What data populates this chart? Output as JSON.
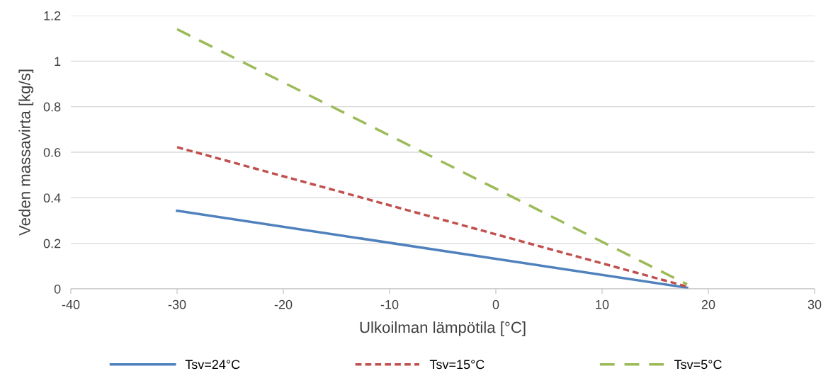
{
  "chart_data": {
    "type": "line",
    "xlabel": "Ulkoilman lämpötila [°C]",
    "ylabel": "Veden massavirta [kg/s]",
    "series": [
      {
        "name": "Tsv=24°C",
        "color": "#4f81bd",
        "line_style": "solid",
        "values": [
          0.343,
          0.005
        ]
      },
      {
        "name": "Tsv=15°C",
        "color": "#c0504d",
        "line_style": "dotted",
        "values": [
          0.622,
          0.01
        ]
      },
      {
        "name": "Tsv=5°C",
        "color": "#9bbb59",
        "line_style": "dashed",
        "values": [
          1.14,
          0.02
        ]
      }
    ],
    "x": [
      -30,
      18
    ],
    "xlim": [
      -40,
      30
    ],
    "xticks": [
      -40,
      -30,
      -20,
      -10,
      0,
      10,
      20,
      30
    ],
    "ylim": [
      0,
      1.2
    ],
    "yticks": [
      0,
      {
        "value": 0.2,
        "label": "0.2"
      },
      {
        "value": 0.4,
        "label": "0.4"
      },
      {
        "value": 0.6,
        "label": "0.6"
      },
      {
        "value": 0.8,
        "label": "0.8"
      },
      1,
      {
        "value": 1.2,
        "label": "1.2"
      }
    ],
    "grid": "y",
    "legend": "bottom",
    "marker": "none"
  }
}
